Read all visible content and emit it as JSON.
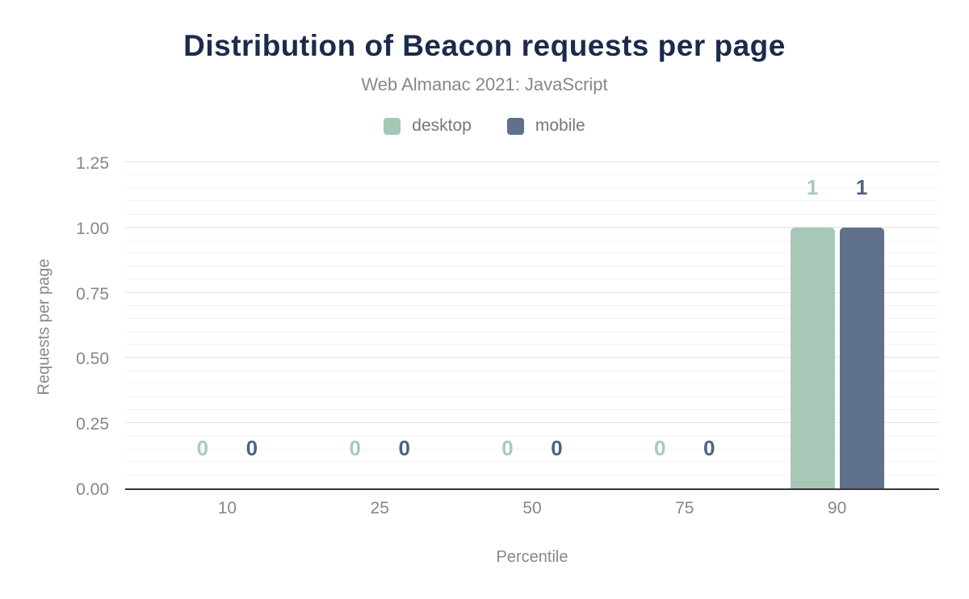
{
  "chart_data": {
    "type": "bar",
    "title": "Distribution of Beacon requests per page",
    "subtitle": "Web Almanac 2021: JavaScript",
    "categories": [
      "10",
      "25",
      "50",
      "75",
      "90"
    ],
    "series": [
      {
        "name": "desktop",
        "values": [
          0,
          0,
          0,
          0,
          1
        ],
        "color": "#a7c8b6",
        "label_color": "#a9cbb8"
      },
      {
        "name": "mobile",
        "values": [
          0,
          0,
          0,
          0,
          1
        ],
        "color": "#5f718c",
        "label_color": "#4d6380"
      }
    ],
    "xlabel": "Percentile",
    "ylabel": "Requests per page",
    "ylim": [
      0,
      1.25
    ],
    "yticks": [
      "0.00",
      "0.25",
      "0.50",
      "0.75",
      "1.00",
      "1.25"
    ],
    "y_major_step": 0.25,
    "y_minor_step": 0.05,
    "grid": "on",
    "legend_position": "top"
  },
  "colors": {
    "title": "#1c2b4a",
    "subtitle": "#85878c",
    "axis_text": "#84878e",
    "axis_line": "#35363a",
    "grid_major": "#e3e3e6",
    "grid_minor": "#f3f3f5",
    "background": "#ffffff"
  }
}
